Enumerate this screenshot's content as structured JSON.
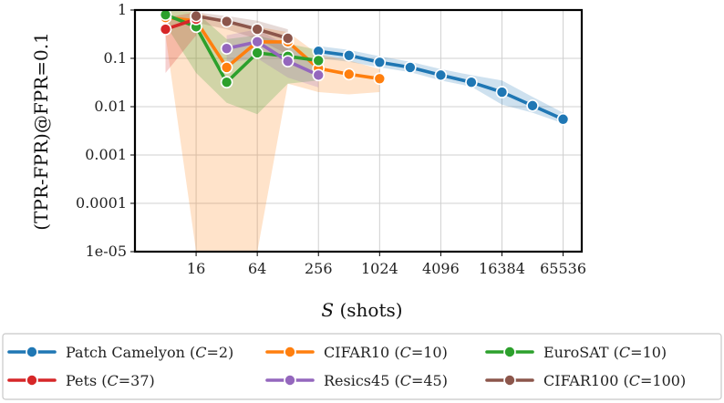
{
  "chart_data": {
    "type": "line",
    "xlabel_var": "S",
    "xlabel_rest": " (shots)",
    "ylabel": "(TPR-FPR)@FPR=0.1",
    "x_scale": "log2",
    "y_scale": "log10",
    "xlim": [
      4,
      100000
    ],
    "ylim": [
      1e-05,
      1
    ],
    "x_ticks": [
      16,
      64,
      256,
      1024,
      4096,
      16384,
      65536
    ],
    "x_tick_labels": [
      "16",
      "64",
      "256",
      "1024",
      "4096",
      "16384",
      "65536"
    ],
    "y_ticks": [
      1e-05,
      0.0001,
      0.001,
      0.01,
      0.1,
      1
    ],
    "y_tick_labels": [
      "1e-05",
      "0.0001",
      "0.001",
      "0.01",
      "0.1",
      "1"
    ],
    "grid": true,
    "legend_position": "bottom",
    "series": [
      {
        "name": "Patch Camelyon",
        "C": "2",
        "color": "#1f77b4",
        "x": [
          256,
          512,
          1024,
          2048,
          4096,
          8192,
          16384,
          32768,
          65536
        ],
        "y": [
          0.14,
          0.115,
          0.083,
          0.065,
          0.045,
          0.032,
          0.02,
          0.0105,
          0.0055
        ],
        "band_low": [
          0.1,
          0.085,
          0.065,
          0.052,
          0.035,
          0.026,
          0.011,
          0.0075,
          0.0045
        ],
        "band_high": [
          0.18,
          0.15,
          0.11,
          0.085,
          0.06,
          0.045,
          0.035,
          0.016,
          0.0075
        ]
      },
      {
        "name": "CIFAR10",
        "C": "10",
        "color": "#ff7f0e",
        "x": [
          8,
          16,
          32,
          64,
          128,
          256,
          512,
          1024
        ],
        "y": [
          0.7,
          0.6,
          0.065,
          0.22,
          0.22,
          0.062,
          0.047,
          0.038
        ],
        "band_low": [
          0.3,
          1e-05,
          1e-05,
          1e-05,
          0.03,
          0.02,
          0.018,
          0.02
        ],
        "band_high": [
          0.95,
          0.95,
          0.5,
          0.45,
          0.35,
          0.12,
          0.09,
          0.06
        ]
      },
      {
        "name": "EuroSAT",
        "C": "10",
        "color": "#2ca02c",
        "x": [
          8,
          16,
          32,
          64,
          128,
          256
        ],
        "y": [
          0.8,
          0.45,
          0.032,
          0.13,
          0.11,
          0.09
        ],
        "band_low": [
          0.5,
          0.05,
          0.012,
          0.007,
          0.03,
          0.035
        ],
        "band_high": [
          0.97,
          0.9,
          0.25,
          0.3,
          0.2,
          0.15
        ]
      },
      {
        "name": "Pets",
        "C": "37",
        "color": "#d62728",
        "x": [
          8,
          16
        ],
        "y": [
          0.4,
          0.65
        ],
        "band_low": [
          0.05,
          0.3
        ],
        "band_high": [
          0.7,
          0.9
        ]
      },
      {
        "name": "Resics45",
        "C": "45",
        "color": "#9467bd",
        "x": [
          32,
          64,
          128,
          256
        ],
        "y": [
          0.16,
          0.22,
          0.087,
          0.045
        ],
        "band_low": [
          0.08,
          0.1,
          0.04,
          0.025
        ],
        "band_high": [
          0.3,
          0.4,
          0.18,
          0.08
        ]
      },
      {
        "name": "CIFAR100",
        "C": "100",
        "color": "#8c564b",
        "x": [
          16,
          32,
          64,
          128
        ],
        "y": [
          0.75,
          0.58,
          0.4,
          0.26
        ],
        "band_low": [
          0.55,
          0.4,
          0.25,
          0.12
        ],
        "band_high": [
          0.9,
          0.75,
          0.6,
          0.4
        ]
      }
    ]
  }
}
